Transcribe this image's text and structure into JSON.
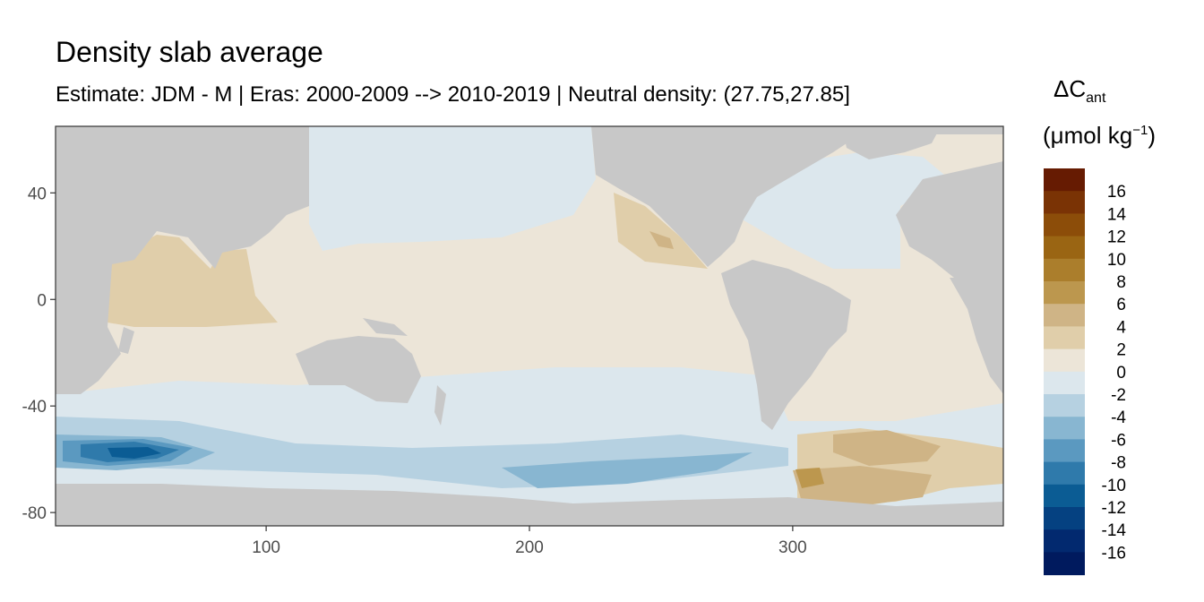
{
  "title": "Density slab average",
  "subtitle": "Estimate: JDM - M | Eras: 2000-2009 --> 2010-2019 | Neutral density: (27.75,27.85]",
  "legend": {
    "symbol": "ΔC",
    "subscript": "ant",
    "unit_prefix": "(μmol kg",
    "unit_exponent": "−1",
    "unit_suffix": ")",
    "bins": [
      {
        "label": "16",
        "color": "#661b02"
      },
      {
        "label": "14",
        "color": "#7a3305"
      },
      {
        "label": "12",
        "color": "#8c4d09"
      },
      {
        "label": "10",
        "color": "#9a6513"
      },
      {
        "label": "8",
        "color": "#ab7e2c"
      },
      {
        "label": "6",
        "color": "#bc974e"
      },
      {
        "label": "4",
        "color": "#cfb486"
      },
      {
        "label": "2",
        "color": "#e0ceaa"
      },
      {
        "label": "0",
        "color": "#ece5d8"
      },
      {
        "label": "-2",
        "color": "#dce7ed"
      },
      {
        "label": "-4",
        "color": "#b6d1e1"
      },
      {
        "label": "-6",
        "color": "#88b6d1"
      },
      {
        "label": "-8",
        "color": "#5b99c0"
      },
      {
        "label": "-10",
        "color": "#2f7aab"
      },
      {
        "label": "-12",
        "color": "#0b5c94"
      },
      {
        "label": "-14",
        "color": "#054181"
      },
      {
        "label": "-16",
        "color": "#02296f"
      },
      {
        "label": "",
        "color": "#001a5e"
      }
    ]
  },
  "axes": {
    "x": {
      "range": [
        20,
        380
      ],
      "ticks": [
        "100",
        "200",
        "300"
      ],
      "tick_values": [
        100,
        200,
        300
      ]
    },
    "y": {
      "range": [
        -85,
        65
      ],
      "ticks": [
        "40",
        "0",
        "-40",
        "-80"
      ],
      "tick_values": [
        40,
        0,
        -40,
        -80
      ]
    }
  },
  "colors": {
    "land": "#c8c8c8",
    "no_data": "#ffffff",
    "panel_border": "#333333"
  }
}
